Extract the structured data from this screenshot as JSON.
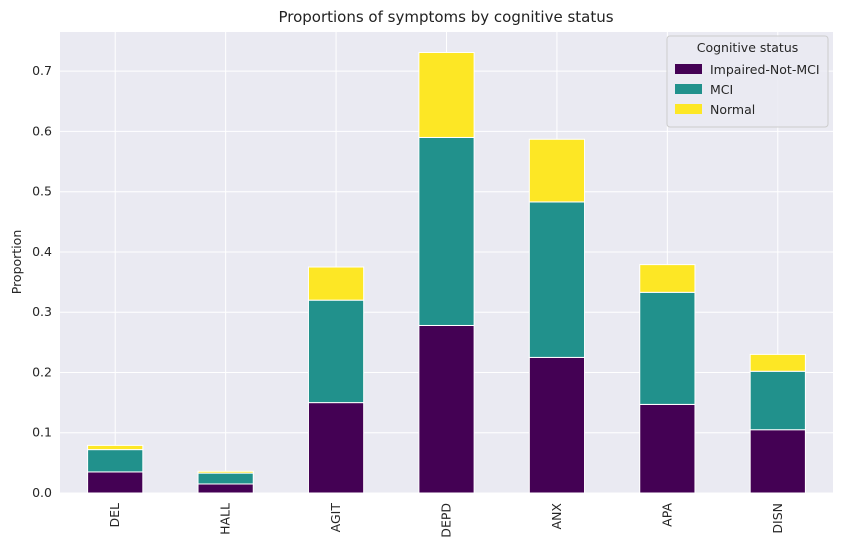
{
  "chart_data": {
    "type": "bar",
    "stacked": true,
    "title": "Proportions of symptoms by cognitive status",
    "xlabel": "",
    "ylabel": "Proportion",
    "ylim": [
      0,
      0.765
    ],
    "yticks": [
      0.0,
      0.1,
      0.2,
      0.3,
      0.4,
      0.5,
      0.6,
      0.7
    ],
    "ytick_labels": [
      "0.0",
      "0.1",
      "0.2",
      "0.3",
      "0.4",
      "0.5",
      "0.6",
      "0.7"
    ],
    "categories": [
      "DEL",
      "HALL",
      "AGIT",
      "DEPD",
      "ANX",
      "APA",
      "DISN"
    ],
    "series": [
      {
        "name": "Impaired-Not-MCI",
        "color": "#440154",
        "values": [
          0.035,
          0.015,
          0.15,
          0.278,
          0.225,
          0.147,
          0.105
        ]
      },
      {
        "name": "MCI",
        "color": "#21918c",
        "values": [
          0.037,
          0.018,
          0.17,
          0.312,
          0.258,
          0.186,
          0.097
        ]
      },
      {
        "name": "Normal",
        "color": "#fde725",
        "values": [
          0.007,
          0.003,
          0.055,
          0.141,
          0.104,
          0.046,
          0.028
        ]
      }
    ],
    "legend": {
      "title": "Cognitive status",
      "position": "top-right"
    },
    "grid": true,
    "background": "#eaeaf2"
  }
}
